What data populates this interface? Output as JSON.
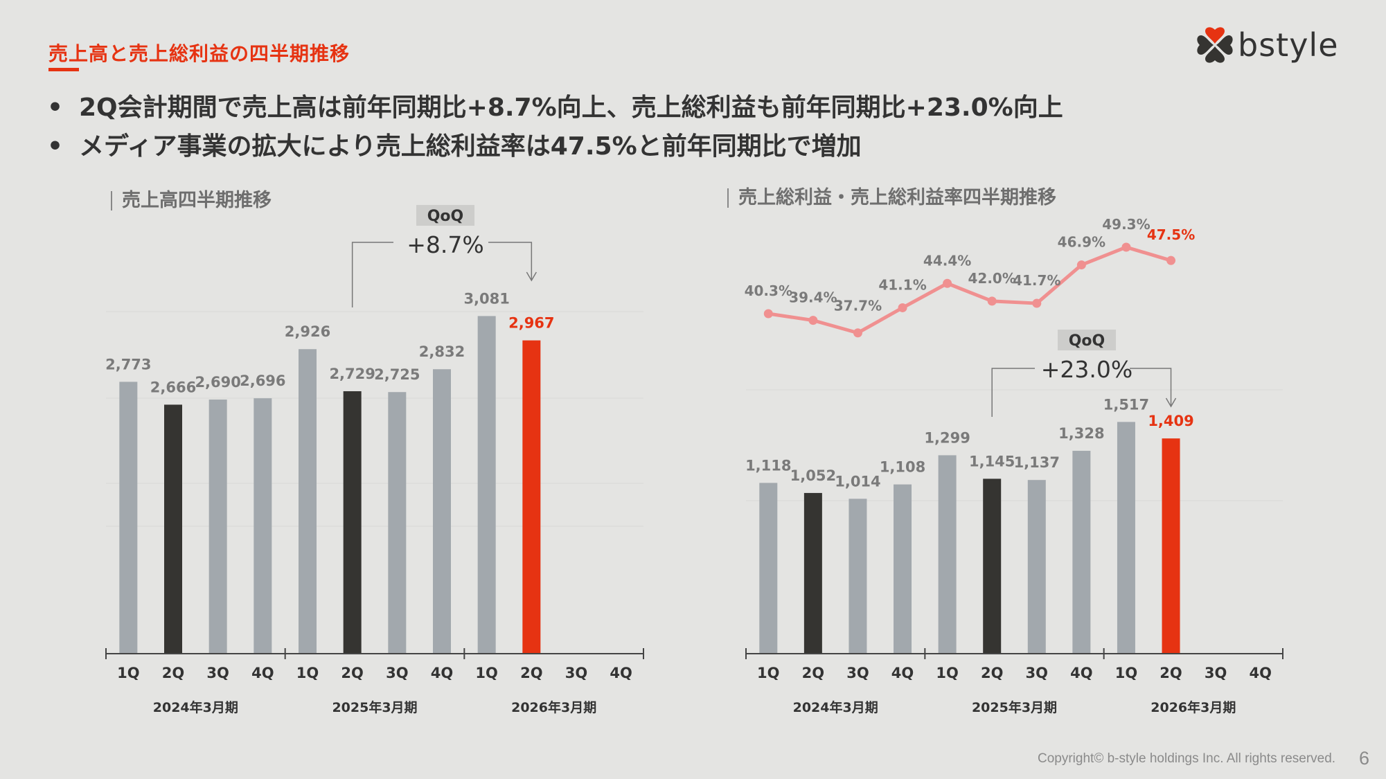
{
  "header": {
    "title": "売上高と売上総利益の四半期推移",
    "logo_text": "bstyle"
  },
  "bullets": [
    "2Q会計期間で売上高は前年同期比+8.7%向上、売上総利益も前年同期比+23.0%向上",
    "メディア事業の拡大により売上総利益率は47.5%と前年同期比で増加"
  ],
  "bullet_symbol": "•",
  "footer": {
    "copyright": "Copyright© b-style holdings Inc. All rights reserved.",
    "page": "6"
  },
  "colors": {
    "accent": "#e63312",
    "bar_default": "#a2a8ad",
    "bar_prior_2q": "#353431",
    "bar_current": "#e63312",
    "line": "#f09090"
  },
  "chart_data": [
    {
      "type": "bar",
      "title": "売上高四半期推移",
      "categories": [
        "1Q",
        "2Q",
        "3Q",
        "4Q",
        "1Q",
        "2Q",
        "3Q",
        "4Q",
        "1Q",
        "2Q",
        "3Q",
        "4Q"
      ],
      "groups": [
        "2024年3月期",
        "2025年3月期",
        "2026年3月期"
      ],
      "values": [
        2773,
        2666,
        2690,
        2696,
        2926,
        2729,
        2725,
        2832,
        3081,
        2967,
        null,
        null
      ],
      "labels": [
        "2,773",
        "2,666",
        "2,690",
        "2,696",
        "2,926",
        "2,729",
        "2,725",
        "2,832",
        "3,081",
        "2,967",
        "",
        ""
      ],
      "highlight": {
        "prior_2q": [
          1,
          5
        ],
        "current": 9
      },
      "ylim": [
        1500,
        3300
      ],
      "annotation": {
        "badge": "QoQ",
        "value": "+8.7%",
        "from_index": 5,
        "to_index": 9
      },
      "xlabel": "",
      "ylabel": ""
    },
    {
      "type": "bar",
      "title": "売上総利益・売上総利益率四半期推移",
      "categories": [
        "1Q",
        "2Q",
        "3Q",
        "4Q",
        "1Q",
        "2Q",
        "3Q",
        "4Q",
        "1Q",
        "2Q",
        "3Q",
        "4Q"
      ],
      "groups": [
        "2024年3月期",
        "2025年3月期",
        "2026年3月期"
      ],
      "values": [
        1118,
        1052,
        1014,
        1108,
        1299,
        1145,
        1137,
        1328,
        1517,
        1409,
        null,
        null
      ],
      "labels": [
        "1,118",
        "1,052",
        "1,014",
        "1,108",
        "1,299",
        "1,145",
        "1,137",
        "1,328",
        "1,517",
        "1,409",
        "",
        ""
      ],
      "highlight": {
        "prior_2q": [
          1,
          5
        ],
        "current": 9
      },
      "ylim": [
        0,
        1900
      ],
      "annotation": {
        "badge": "QoQ",
        "value": "+23.0%",
        "from_index": 5,
        "to_index": 9
      },
      "line_series": {
        "name": "売上総利益率",
        "type": "line",
        "values": [
          40.3,
          39.4,
          37.7,
          41.1,
          44.4,
          42.0,
          41.7,
          46.9,
          49.3,
          47.5
        ],
        "labels": [
          "40.3%",
          "39.4%",
          "37.7%",
          "41.1%",
          "44.4%",
          "42.0%",
          "41.7%",
          "46.9%",
          "49.3%",
          "47.5%"
        ]
      },
      "xlabel": "",
      "ylabel": ""
    }
  ]
}
